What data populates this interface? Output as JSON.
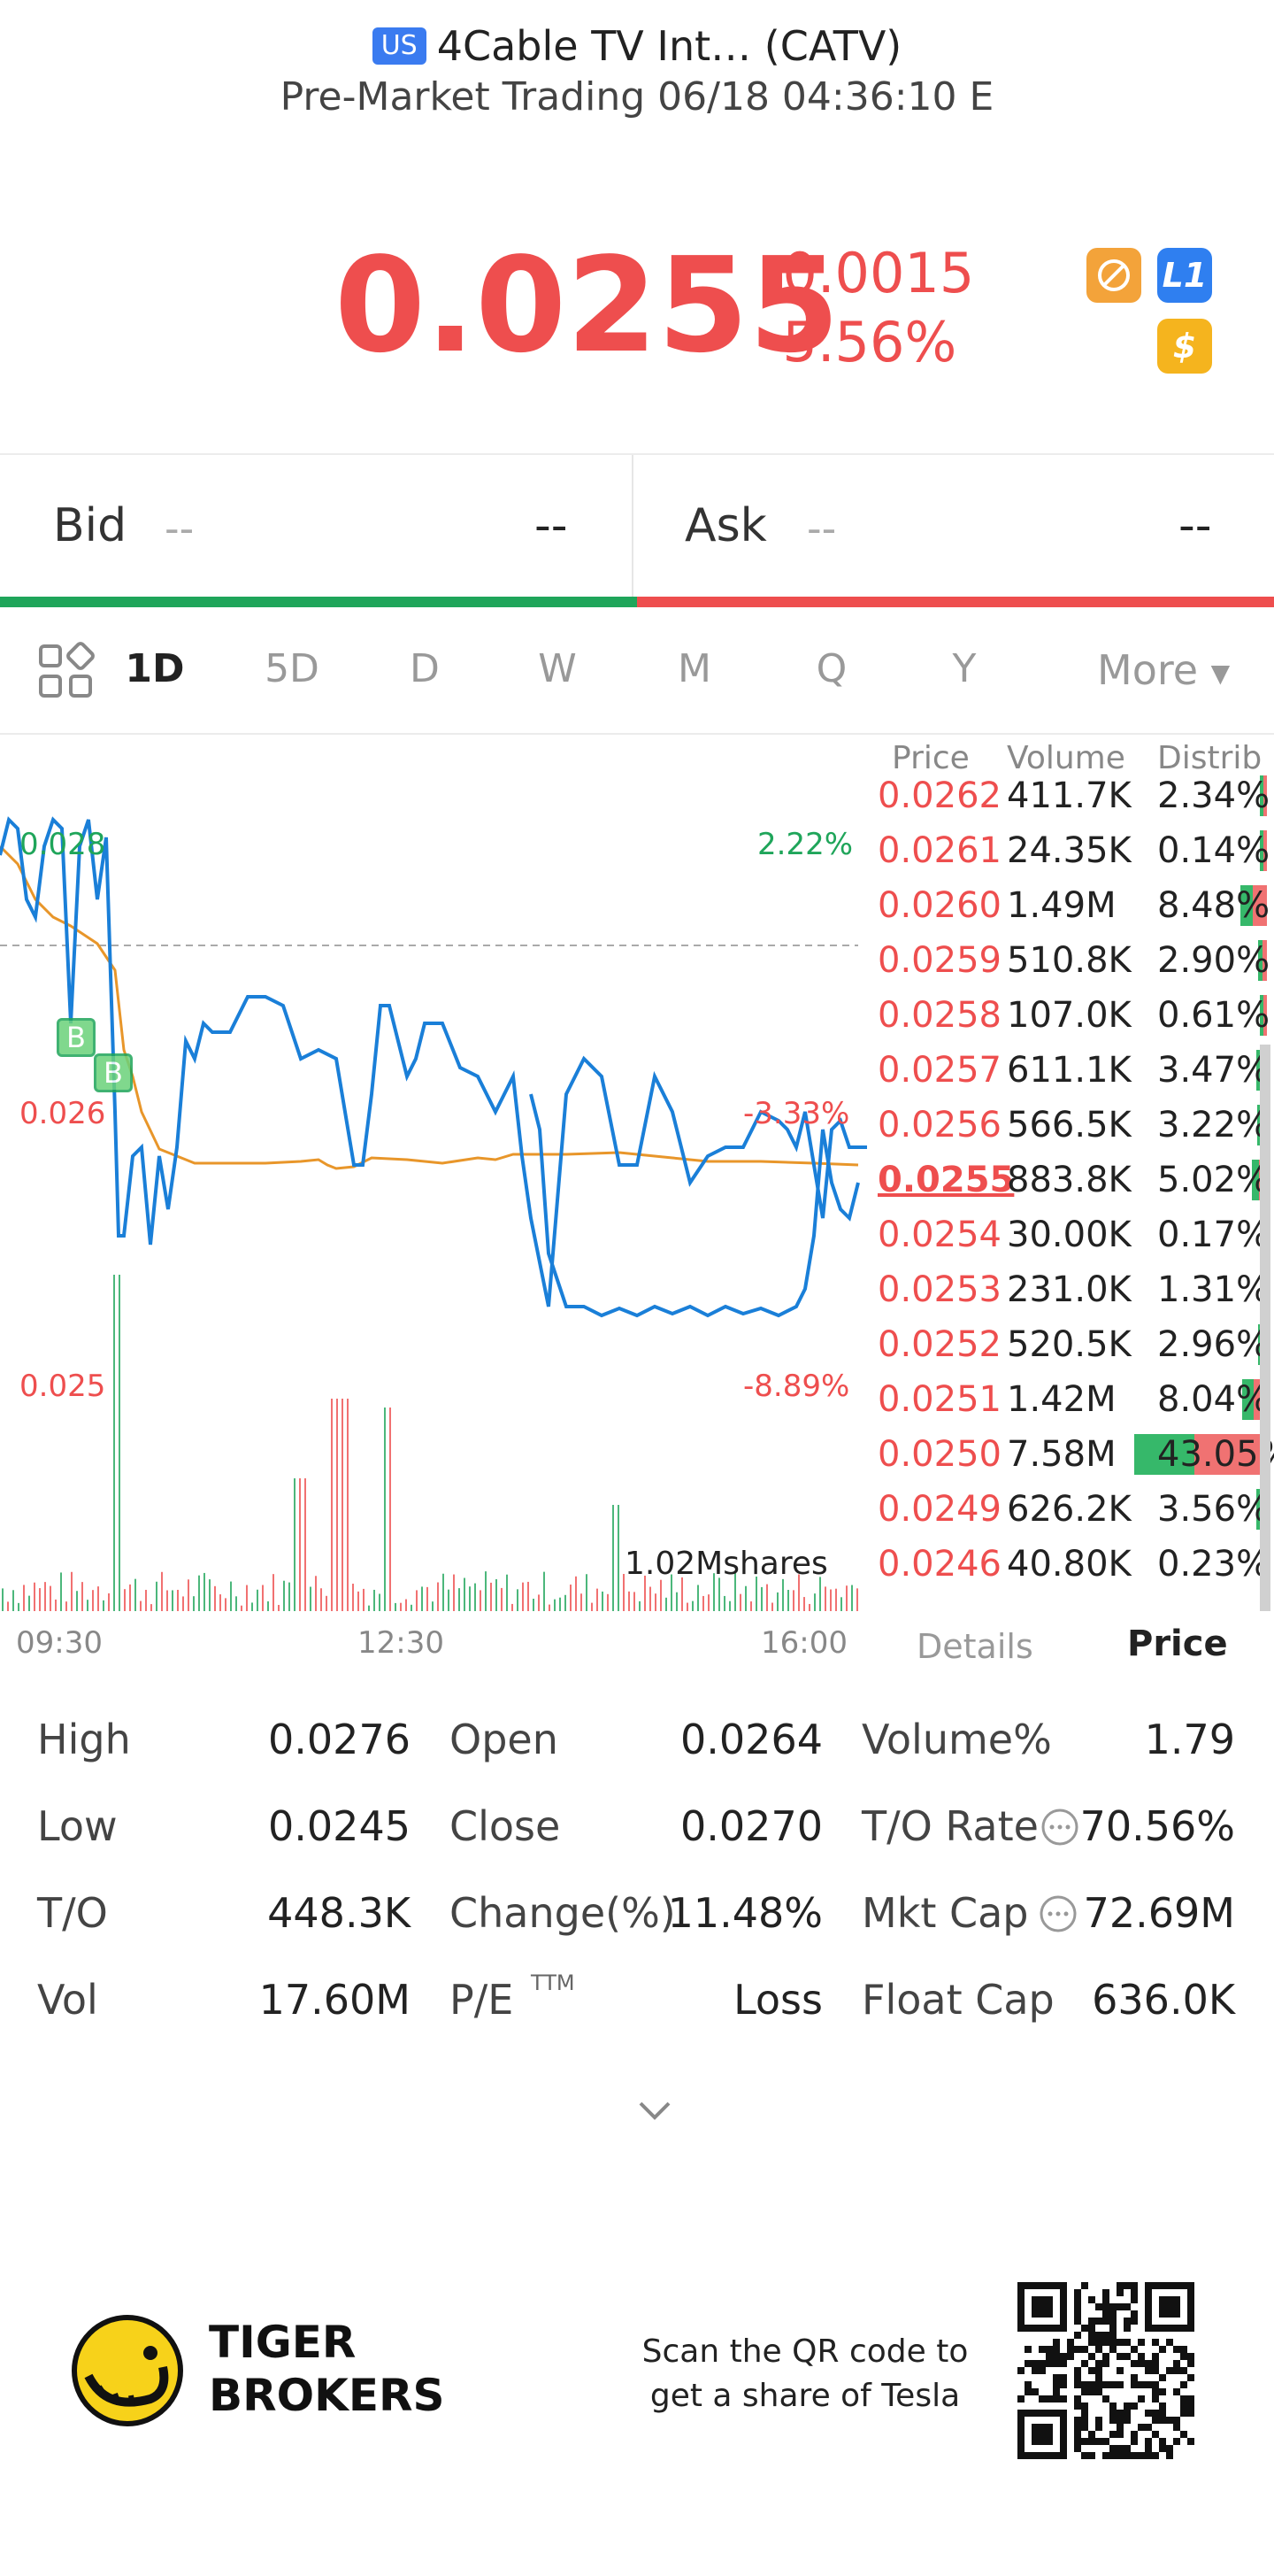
{
  "header": {
    "market_badge": "US",
    "title": "4Cable TV Int… (CATV)",
    "subtitle": "Pre-Market Trading 06/18 04:36:10 E"
  },
  "quote": {
    "price": "0.0255",
    "change": "-0.0015",
    "change_pct": "-5.56%",
    "icons": [
      "no-commission-icon",
      "level1-icon",
      "dollar-icon"
    ],
    "level_badge": "L1",
    "dollar_badge": "$"
  },
  "bidask": {
    "bid_label": "Bid",
    "bid_size": "--",
    "bid_value": "--",
    "ask_label": "Ask",
    "ask_size": "--",
    "ask_value": "--"
  },
  "timeframes": [
    "1D",
    "5D",
    "D",
    "W",
    "M",
    "Q",
    "Y"
  ],
  "timeframe_active": "1D",
  "more_label": "More",
  "chart": {
    "left_labels": [
      "0.028",
      "0.026",
      "0.025"
    ],
    "right_labels": [
      "2.22%",
      "-3.33%",
      "-8.89%"
    ],
    "volume_label": "1.02Mshares",
    "x_labels": [
      "09:30",
      "12:30",
      "16:00"
    ],
    "trade_markers": [
      "B",
      "B"
    ]
  },
  "chart_data": {
    "type": "line",
    "x": [
      "09:30",
      "12:30",
      "16:00"
    ],
    "series": [],
    "ylim": [
      0.0245,
      0.0284
    ],
    "reference_line": 0.027
  },
  "orderbook": {
    "headers": [
      "Price",
      "Volume",
      "Distrib"
    ],
    "rows": [
      {
        "price": "0.0262",
        "volume": "411.7K",
        "dist": "2.34%"
      },
      {
        "price": "0.0261",
        "volume": "24.35K",
        "dist": "0.14%"
      },
      {
        "price": "0.0260",
        "volume": "1.49M",
        "dist": "8.48%"
      },
      {
        "price": "0.0259",
        "volume": "510.8K",
        "dist": "2.90%"
      },
      {
        "price": "0.0258",
        "volume": "107.0K",
        "dist": "0.61%"
      },
      {
        "price": "0.0257",
        "volume": "611.1K",
        "dist": "3.47%"
      },
      {
        "price": "0.0256",
        "volume": "566.5K",
        "dist": "3.22%"
      },
      {
        "price": "0.0255",
        "volume": "883.8K",
        "dist": "5.02%"
      },
      {
        "price": "0.0254",
        "volume": "30.00K",
        "dist": "0.17%"
      },
      {
        "price": "0.0253",
        "volume": "231.0K",
        "dist": "1.31%"
      },
      {
        "price": "0.0252",
        "volume": "520.5K",
        "dist": "2.96%"
      },
      {
        "price": "0.0251",
        "volume": "1.42M",
        "dist": "8.04%"
      },
      {
        "price": "0.0250",
        "volume": "7.58M",
        "dist": "43.05%"
      },
      {
        "price": "0.0249",
        "volume": "626.2K",
        "dist": "3.56%"
      },
      {
        "price": "0.0246",
        "volume": "40.80K",
        "dist": "0.23%"
      }
    ],
    "tab_details": "Details",
    "tab_price": "Price"
  },
  "stats": [
    [
      {
        "label": "High",
        "value": "0.0276"
      },
      {
        "label": "Open",
        "value": "0.0264"
      },
      {
        "label": "Volume%",
        "value": "1.79"
      }
    ],
    [
      {
        "label": "Low",
        "value": "0.0245"
      },
      {
        "label": "Close",
        "value": "0.0270"
      },
      {
        "label": "T/O Rate",
        "value": "70.56%"
      }
    ],
    [
      {
        "label": "T/O",
        "value": "448.3K"
      },
      {
        "label": "Change(%)",
        "value": "11.48%"
      },
      {
        "label": "Mkt Cap",
        "value": "72.69M"
      }
    ],
    [
      {
        "label": "Vol",
        "value": "17.60M"
      },
      {
        "label": "P/E",
        "value": "Loss"
      },
      {
        "label": "Float Cap",
        "value": "636.0K"
      }
    ]
  ],
  "pe_superscript": "TTM",
  "footer": {
    "brand_line1": "TIGER",
    "brand_line2": "BROKERS",
    "scan_line1": "Scan the QR code to",
    "scan_line2": "get a share of Tesla"
  },
  "colors": {
    "red": "#ee4e4e",
    "green": "#1fa55a",
    "blue": "#1a7fd8",
    "orange": "#e8962a"
  }
}
